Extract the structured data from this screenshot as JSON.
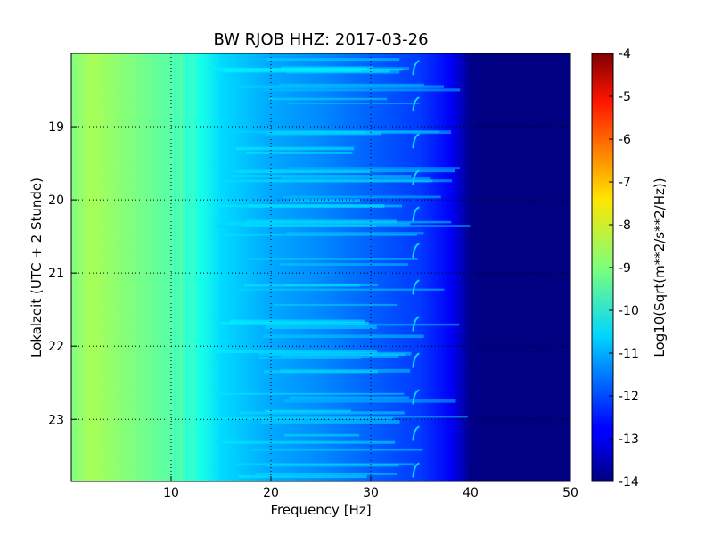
{
  "chart_data": {
    "type": "heatmap",
    "title": "BW RJOB HHZ: 2017-03-26",
    "xlabel": "Frequency [Hz]",
    "ylabel": "Lokalzeit (UTC + 2 Stunde)",
    "xlim": [
      0,
      50
    ],
    "ylim": [
      18.0,
      23.85
    ],
    "y_inverted": true,
    "x_ticks": [
      "10",
      "20",
      "30",
      "40",
      "50"
    ],
    "y_ticks": [
      "19",
      "20",
      "21",
      "22",
      "23"
    ],
    "grid": true,
    "colormap": "jet",
    "colorbar": {
      "label": "Log10(Sqrt(m**2/s**2/Hz))",
      "range": [
        -14,
        -4
      ],
      "ticks": [
        "-4",
        "-5",
        "-6",
        "-7",
        "-8",
        "-9",
        "-10",
        "-11",
        "-12",
        "-13",
        "-14"
      ]
    },
    "level_profile": {
      "frequency_hz": [
        0,
        2,
        5,
        10,
        13,
        15,
        20,
        25,
        30,
        35,
        38,
        40,
        42,
        50
      ],
      "log_amplitude": [
        -9.0,
        -8.6,
        -8.9,
        -9.4,
        -10.0,
        -10.6,
        -11.1,
        -11.4,
        -11.8,
        -12.2,
        -12.8,
        -13.9,
        -14.0,
        -14.0
      ]
    },
    "features": [
      {
        "frequency_hz": 34.5,
        "description": "recurring narrow-band arc near 34-35 Hz"
      },
      {
        "frequency_hz": 11,
        "description": "persistent narrow-band lines between 10 and 13 Hz"
      }
    ],
    "colors": {
      "low": "#00007f",
      "mid": "#00b0ff",
      "high": "#7f0000"
    }
  }
}
